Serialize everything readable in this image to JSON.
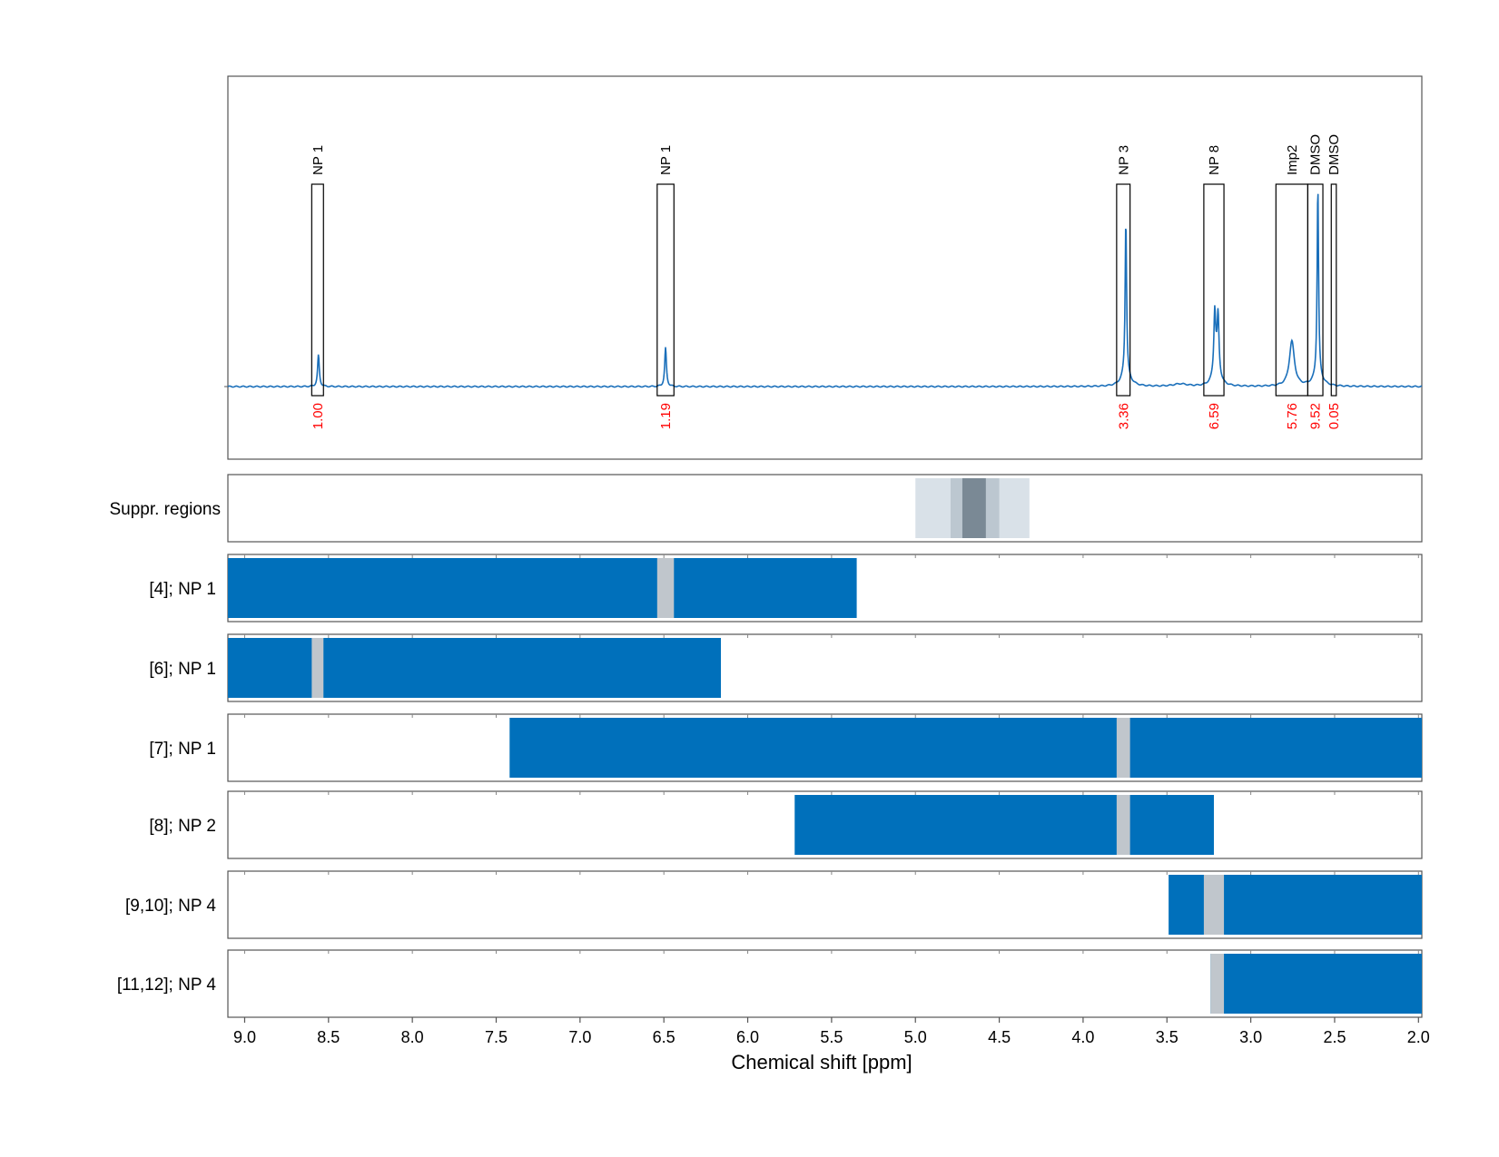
{
  "chart_data": {
    "type": "line",
    "xlabel": "Chemical shift [ppm]",
    "xlim": [
      9.1,
      1.98
    ],
    "x_ticks": [
      "9.0",
      "8.5",
      "8.0",
      "7.5",
      "7.0",
      "6.5",
      "6.0",
      "5.5",
      "5.0",
      "4.5",
      "4.0",
      "3.5",
      "3.0",
      "2.5",
      "2.0"
    ],
    "grid": true,
    "spectrum": {
      "color": "#1a6fba",
      "peaks": [
        {
          "ppm": 8.56,
          "height": 0.155,
          "width": 0.006
        },
        {
          "ppm": 6.49,
          "height": 0.19,
          "width": 0.006
        },
        {
          "ppm": 3.745,
          "height": 0.76,
          "width": 0.005
        },
        {
          "ppm": 3.745,
          "height": 0.06,
          "width": 0.03
        },
        {
          "ppm": 3.215,
          "height": 0.28,
          "width": 0.006
        },
        {
          "ppm": 3.195,
          "height": 0.26,
          "width": 0.006
        },
        {
          "ppm": 3.205,
          "height": 0.12,
          "width": 0.02
        },
        {
          "ppm": 2.755,
          "height": 0.22,
          "width": 0.018
        },
        {
          "ppm": 2.6,
          "height": 0.93,
          "width": 0.005
        },
        {
          "ppm": 2.6,
          "height": 0.05,
          "width": 0.03
        },
        {
          "ppm": 3.42,
          "height": 0.012,
          "width": 0.05
        }
      ]
    },
    "peak_boxes": [
      {
        "label": "NP 1",
        "integral": "1.00",
        "from": 8.6,
        "to": 8.53
      },
      {
        "label": "NP 1",
        "integral": "1.19",
        "from": 6.54,
        "to": 6.44
      },
      {
        "label": "NP 3",
        "integral": "3.36",
        "from": 3.8,
        "to": 3.72
      },
      {
        "label": "NP 8",
        "integral": "6.59",
        "from": 3.28,
        "to": 3.16
      },
      {
        "label": "Imp2",
        "integral": "5.76",
        "from": 2.85,
        "to": 2.66
      },
      {
        "label": "DMSO",
        "integral": "9.52",
        "from": 2.66,
        "to": 2.57
      },
      {
        "label": "DMSO",
        "integral": "0.05",
        "from": 2.52,
        "to": 2.49
      }
    ],
    "integral_color": "#ff0000",
    "suppression_regions": [
      {
        "from": 5.0,
        "to": 4.32,
        "shade": "light"
      },
      {
        "from": 4.79,
        "to": 4.5,
        "shade": "mid"
      },
      {
        "from": 4.72,
        "to": 4.58,
        "shade": "dark"
      }
    ],
    "suppression_label": "Suppr. regions",
    "rows": [
      {
        "label": "[4]; NP 1",
        "from": 9.1,
        "to": 5.35,
        "gap": [
          6.54,
          6.44
        ]
      },
      {
        "label": "[6]; NP 1",
        "from": 9.1,
        "to": 6.16,
        "gap": [
          8.6,
          8.53
        ]
      },
      {
        "label": "[7]; NP 1",
        "from": 7.42,
        "to": 1.98,
        "gap": [
          3.8,
          3.72
        ]
      },
      {
        "label": "[8]; NP 2",
        "from": 5.72,
        "to": 3.22,
        "gap": [
          3.8,
          3.72
        ]
      },
      {
        "label": "[9,10]; NP 4",
        "from": 3.49,
        "to": 1.98,
        "gap": [
          3.28,
          3.16
        ]
      },
      {
        "label": "[11,12]; NP 4",
        "from": 3.24,
        "to": 1.98,
        "gap": [
          3.24,
          3.16
        ]
      }
    ],
    "bar_color": "#0070bb",
    "gap_color": "#c0c6cc",
    "shade_colors": {
      "light": "#d9e1e8",
      "mid": "#bcc7d0",
      "dark": "#7a8995"
    }
  }
}
